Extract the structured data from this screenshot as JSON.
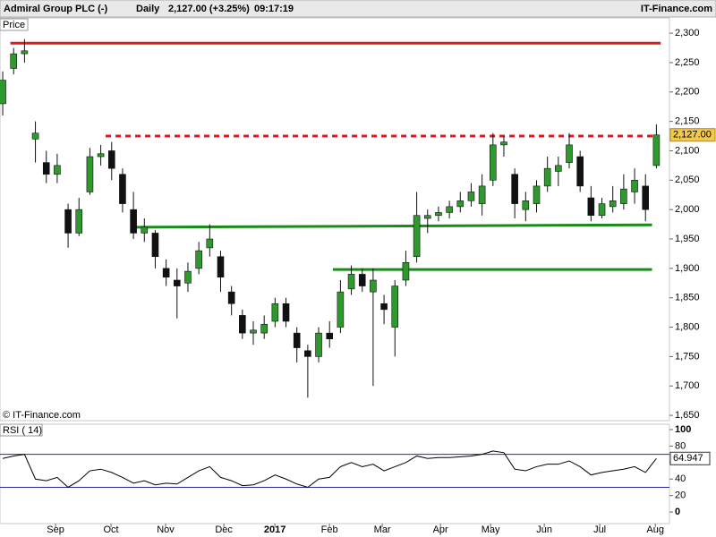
{
  "header": {
    "name": "Admiral Group PLC (-)",
    "period": "Daily",
    "quote": "2,127.00 (+3.25%)",
    "time": "09:17:19",
    "site": "IT-Finance.com",
    "panel_label": "Price",
    "copyright": "© IT-Finance.com"
  },
  "chart_data": [
    {
      "type": "candlestick",
      "up_color": "#2e9a2e",
      "down_color": "#111111",
      "open": [
        2180,
        2240,
        2265,
        2120,
        2080,
        2060,
        2000,
        1960,
        2030,
        2090,
        2100,
        2060,
        2000,
        1960,
        1960,
        1900,
        1880,
        1875,
        1900,
        1935,
        1920,
        1860,
        1820,
        1790,
        1790,
        1810,
        1840,
        1790,
        1760,
        1750,
        1790,
        1800,
        1865,
        1890,
        1860,
        1840,
        1800,
        1880,
        1920,
        1985,
        1990,
        1995,
        2005,
        2015,
        2010,
        2050,
        2110,
        2060,
        2000,
        2010,
        2040,
        2065,
        2080,
        2090,
        2020,
        1990,
        2005,
        2010,
        2030,
        2040,
        2075
      ],
      "high": [
        2235,
        2275,
        2290,
        2150,
        2100,
        2095,
        2010,
        2020,
        2105,
        2110,
        2115,
        2070,
        2030,
        1985,
        1965,
        1915,
        1900,
        1910,
        1945,
        1975,
        1930,
        1870,
        1830,
        1810,
        1820,
        1850,
        1850,
        1800,
        1770,
        1800,
        1810,
        1880,
        1905,
        1900,
        1900,
        1855,
        1880,
        1930,
        2030,
        2000,
        2005,
        2015,
        2030,
        2045,
        2060,
        2130,
        2125,
        2070,
        2030,
        2050,
        2090,
        2090,
        2130,
        2100,
        2040,
        2020,
        2040,
        2060,
        2070,
        2060,
        2145
      ],
      "low": [
        2160,
        2230,
        2250,
        2080,
        2045,
        2045,
        1935,
        1955,
        2025,
        2075,
        2050,
        1995,
        1950,
        1945,
        1900,
        1870,
        1815,
        1860,
        1890,
        1920,
        1860,
        1820,
        1780,
        1770,
        1780,
        1800,
        1800,
        1740,
        1680,
        1740,
        1765,
        1790,
        1855,
        1860,
        1700,
        1805,
        1750,
        1870,
        1910,
        1960,
        1980,
        1985,
        1995,
        2005,
        1990,
        2040,
        2090,
        1985,
        1980,
        1995,
        2030,
        2040,
        2070,
        2030,
        1980,
        1985,
        1995,
        2000,
        2010,
        1980,
        2070
      ],
      "close": [
        2220,
        2265,
        2270,
        2130,
        2060,
        2075,
        1960,
        2000,
        2090,
        2095,
        2070,
        2010,
        1960,
        1970,
        1920,
        1885,
        1870,
        1895,
        1930,
        1950,
        1885,
        1840,
        1790,
        1795,
        1805,
        1840,
        1810,
        1765,
        1750,
        1790,
        1780,
        1860,
        1890,
        1870,
        1880,
        1830,
        1870,
        1910,
        1990,
        1990,
        1995,
        2005,
        2015,
        2030,
        2040,
        2110,
        2115,
        2010,
        2015,
        2040,
        2070,
        2075,
        2110,
        2040,
        1990,
        2010,
        2015,
        2035,
        2050,
        2000,
        2127
      ],
      "current_price": {
        "value": 2127,
        "label": "2,127.00"
      },
      "lines": [
        {
          "color": "#e0191e",
          "style": "solid",
          "x": [
            0.7,
            60.4
          ],
          "y": [
            2283,
            2283
          ]
        },
        {
          "color": "#e0191e",
          "style": "dashed",
          "x": [
            9.45,
            60
          ],
          "y": [
            2125,
            2125
          ]
        },
        {
          "color": "#1a8a1a",
          "style": "solid",
          "x": [
            12.24,
            59.6
          ],
          "y": [
            1970,
            1974
          ]
        },
        {
          "color": "#1a8a1a",
          "style": "solid",
          "x": [
            30.3,
            59.6
          ],
          "y": [
            1898,
            1898
          ]
        }
      ],
      "xlim": [
        -0.25,
        61.2
      ],
      "ylim": [
        1641,
        2326
      ],
      "yticks": [
        {
          "value": 1650,
          "label": "1,650"
        },
        {
          "value": 1700,
          "label": "1,700"
        },
        {
          "value": 1750,
          "label": "1,750"
        },
        {
          "value": 1800,
          "label": "1,800"
        },
        {
          "value": 1850,
          "label": "1,850"
        },
        {
          "value": 1900,
          "label": "1,900"
        },
        {
          "value": 1950,
          "label": "1,950"
        },
        {
          "value": 2000,
          "label": "2,000"
        },
        {
          "value": 2050,
          "label": "2,050"
        },
        {
          "value": 2100,
          "label": "2,100"
        },
        {
          "value": 2150,
          "label": "2,150"
        },
        {
          "value": 2200,
          "label": "2,200"
        },
        {
          "value": 2250,
          "label": "2,250"
        },
        {
          "value": 2300,
          "label": "2,300"
        }
      ]
    },
    {
      "type": "line",
      "title": "RSI ( 14)",
      "color": "#000000",
      "band_color": "#2a2aa0",
      "values": [
        65,
        68,
        70,
        40,
        38,
        42,
        30,
        38,
        50,
        52,
        48,
        42,
        35,
        38,
        33,
        35,
        34,
        42,
        50,
        55,
        42,
        38,
        32,
        33,
        38,
        45,
        40,
        34,
        30,
        40,
        42,
        55,
        60,
        55,
        58,
        50,
        55,
        60,
        68,
        65,
        66,
        66,
        67,
        68,
        70,
        74,
        72,
        52,
        50,
        55,
        58,
        58,
        62,
        55,
        45,
        48,
        50,
        52,
        55,
        48,
        64.947
      ],
      "bands": [
        30,
        70
      ],
      "xlim": [
        -0.25,
        61.2
      ],
      "ylim": [
        -14,
        106.5
      ],
      "yticks": [
        0,
        20,
        40,
        60,
        80,
        100
      ],
      "xticks": [
        {
          "value": 4.85,
          "label": "Sep"
        },
        {
          "value": 9.94,
          "label": "Oct"
        },
        {
          "value": 14.95,
          "label": "Nov"
        },
        {
          "value": 20.3,
          "label": "Dec"
        },
        {
          "value": 24.98,
          "label": "2017"
        },
        {
          "value": 29.99,
          "label": "Feb"
        },
        {
          "value": 34.84,
          "label": "Mar"
        },
        {
          "value": 40.18,
          "label": "Apr"
        },
        {
          "value": 44.78,
          "label": "May"
        },
        {
          "value": 49.71,
          "label": "Jun"
        },
        {
          "value": 54.8,
          "label": "Jul"
        },
        {
          "value": 59.9,
          "label": "Aug"
        }
      ]
    }
  ]
}
